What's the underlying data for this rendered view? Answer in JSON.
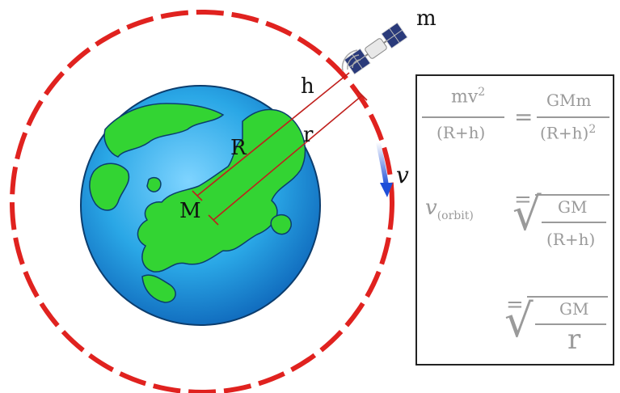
{
  "labels": {
    "satellite_mass": "m",
    "altitude": "h",
    "earth_radius": "R",
    "orbit_radius": "r",
    "earth_mass": "M",
    "velocity": "v"
  },
  "formulas": {
    "eq1_lhs_num": "mv",
    "eq1_lhs_exp": "2",
    "eq1_lhs_den": "(R+h)",
    "eq1_equals": "=",
    "eq1_rhs_num": "GMm",
    "eq1_rhs_den": "(R+h)",
    "eq1_rhs_exp": "2",
    "eq2_var": "v",
    "eq2_sub": "(orbit)",
    "eq2_equals": "=",
    "eq2_num": "GM",
    "eq2_den": "(R+h)",
    "eq3_equals": "=",
    "eq3_num": "GM",
    "eq3_den": "r"
  },
  "colors": {
    "orbit": "#e0221f",
    "ocean": "#2aa7e6",
    "land": "#33d433",
    "arrow": "#1f4fd8",
    "lines": "#c0201d"
  }
}
